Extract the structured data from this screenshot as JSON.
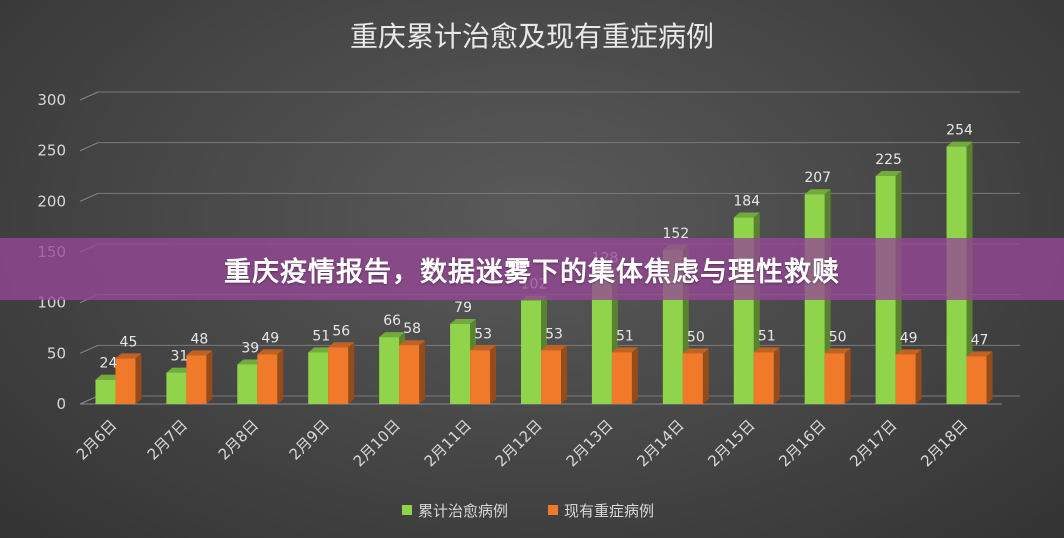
{
  "banner": {
    "text": "重庆疫情报告，数据迷雾下的集体焦虑与理性救赎"
  },
  "chart_data": {
    "type": "bar",
    "title": "重庆累计治愈及现有重症病例",
    "categories": [
      "2月6日",
      "2月7日",
      "2月8日",
      "2月9日",
      "2月10日",
      "2月11日",
      "2月12日",
      "2月13日",
      "2月14日",
      "2月15日",
      "2月16日",
      "2月17日",
      "2月18日"
    ],
    "series": [
      {
        "name": "累计治愈病例",
        "color": "#8fd44a",
        "values": [
          24,
          31,
          39,
          51,
          66,
          79,
          102,
          128,
          152,
          184,
          207,
          225,
          254
        ]
      },
      {
        "name": "现有重症病例",
        "color": "#f07a2a",
        "values": [
          45,
          48,
          49,
          56,
          58,
          53,
          53,
          51,
          50,
          51,
          50,
          49,
          47
        ]
      }
    ],
    "ylim": [
      0,
      300
    ],
    "yticks": [
      0,
      50,
      100,
      150,
      200,
      250,
      300
    ],
    "grid": true,
    "legend": "bottom"
  }
}
